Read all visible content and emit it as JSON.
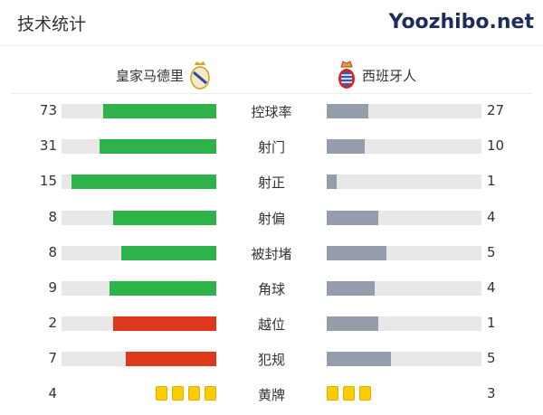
{
  "header": {
    "title": "技术统计"
  },
  "teams": {
    "home": {
      "name": "皇家马德里",
      "logo": "real-madrid-crest"
    },
    "away": {
      "name": "西班牙人",
      "logo": "espanyol-crest"
    }
  },
  "colors": {
    "home_bar": "#2db34a",
    "home_bar_alt": "#e0381c",
    "away_bar": "#959dac",
    "track": "#e8e8e8",
    "yellow_card": "#fccb00"
  },
  "stats": [
    {
      "label": "控球率",
      "home": "73",
      "away": "27",
      "color": "green"
    },
    {
      "label": "射门",
      "home": "31",
      "away": "10",
      "color": "green"
    },
    {
      "label": "射正",
      "home": "15",
      "away": "1",
      "color": "green"
    },
    {
      "label": "射偏",
      "home": "8",
      "away": "4",
      "color": "green"
    },
    {
      "label": "被封堵",
      "home": "8",
      "away": "5",
      "color": "green"
    },
    {
      "label": "角球",
      "home": "9",
      "away": "4",
      "color": "green"
    },
    {
      "label": "越位",
      "home": "2",
      "away": "1",
      "color": "red"
    },
    {
      "label": "犯规",
      "home": "7",
      "away": "5",
      "color": "red"
    }
  ],
  "yellow_cards": {
    "label": "黄牌",
    "home": "4",
    "away": "3"
  },
  "watermark": "Yoozhibo.net"
}
